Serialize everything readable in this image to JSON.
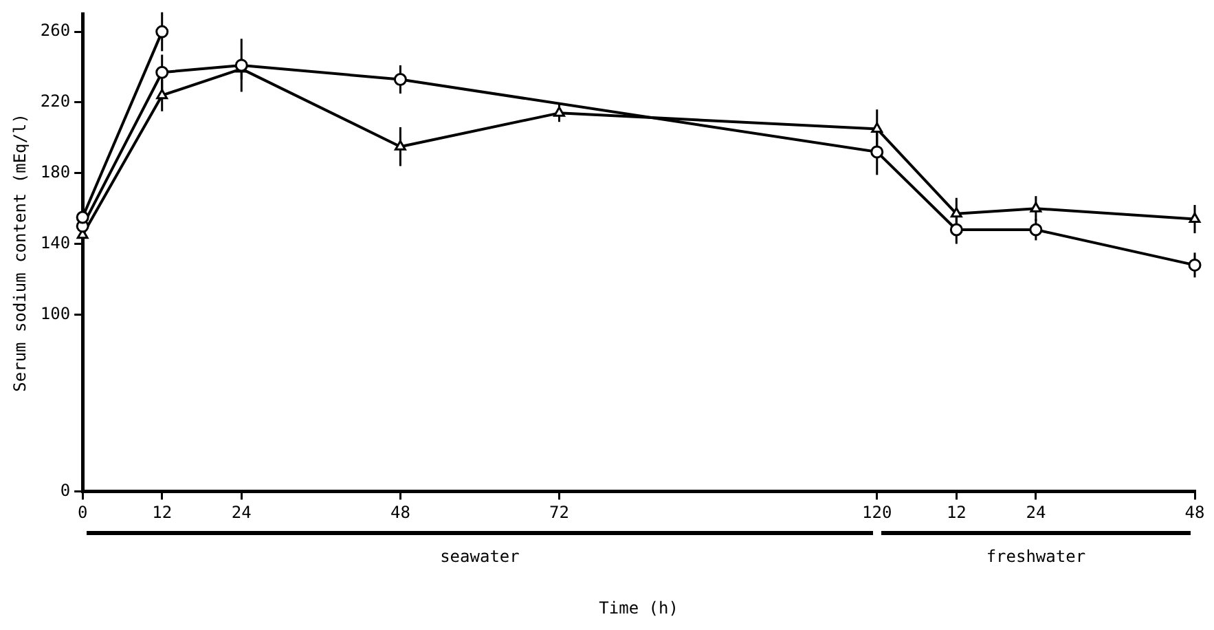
{
  "chart_data": {
    "type": "line",
    "xlabel": "Time (h)",
    "ylabel": "Serum sodium content (mEq/l)",
    "categories": [
      "0",
      "12",
      "24",
      null,
      "48",
      null,
      "72",
      null,
      null,
      null,
      "120",
      "12",
      "24",
      null,
      "48"
    ],
    "ylim": [
      0,
      270
    ],
    "yticks": [
      0,
      100,
      140,
      180,
      220,
      260
    ],
    "series": [
      {
        "color": "#000000",
        "marker": "circle",
        "values": [
          155,
          260,
          null,
          null,
          null,
          null,
          null,
          null,
          null,
          null,
          null,
          null,
          null,
          null,
          null
        ],
        "errors": [
          5,
          11,
          null,
          null,
          null,
          null,
          null,
          null,
          null,
          null,
          null,
          null,
          null,
          null,
          null
        ]
      },
      {
        "color": "#000000",
        "marker": "circle",
        "values": [
          150,
          237,
          241,
          null,
          233,
          null,
          null,
          null,
          null,
          null,
          192,
          148,
          148,
          null,
          128
        ],
        "errors": [
          4,
          10,
          15,
          null,
          8,
          null,
          null,
          null,
          null,
          null,
          13,
          8,
          6,
          null,
          7
        ]
      },
      {
        "color": "#000000",
        "marker": "triangle",
        "values": [
          145,
          224,
          239,
          null,
          195,
          null,
          214,
          null,
          null,
          null,
          205,
          157,
          160,
          null,
          154
        ],
        "errors": [
          4,
          9,
          6,
          null,
          11,
          null,
          5,
          null,
          null,
          null,
          11,
          9,
          7,
          null,
          8
        ]
      }
    ],
    "annotations": [
      "seawater",
      "freshwater"
    ],
    "grid": false,
    "legend": false,
    "line_style": "solid"
  }
}
